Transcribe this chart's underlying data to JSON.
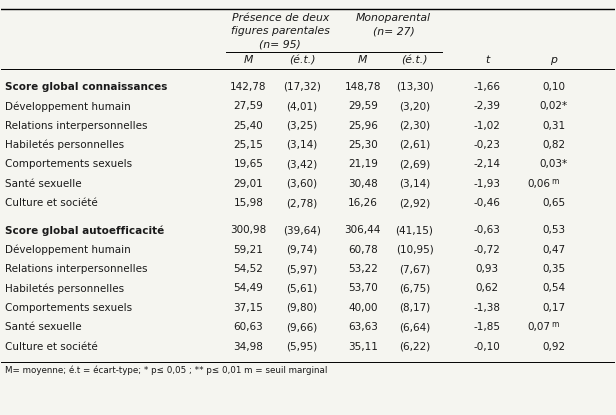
{
  "rows": [
    {
      "label": "Score global connaissances",
      "bold": true,
      "m1": "142,78",
      "et1": "(17,32)",
      "m2": "148,78",
      "et2": "(13,30)",
      "t": "-1,66",
      "p": "0,10",
      "p_suffix": "",
      "space_before": true
    },
    {
      "label": "Développement humain",
      "bold": false,
      "m1": "27,59",
      "et1": "(4,01)",
      "m2": "29,59",
      "et2": "(3,20)",
      "t": "-2,39",
      "p": "0,02*",
      "p_suffix": "",
      "space_before": false
    },
    {
      "label": "Relations interpersonnelles",
      "bold": false,
      "m1": "25,40",
      "et1": "(3,25)",
      "m2": "25,96",
      "et2": "(2,30)",
      "t": "-1,02",
      "p": "0,31",
      "p_suffix": "",
      "space_before": false
    },
    {
      "label": "Habiletés personnelles",
      "bold": false,
      "m1": "25,15",
      "et1": "(3,14)",
      "m2": "25,30",
      "et2": "(2,61)",
      "t": "-0,23",
      "p": "0,82",
      "p_suffix": "",
      "space_before": false
    },
    {
      "label": "Comportements sexuels",
      "bold": false,
      "m1": "19,65",
      "et1": "(3,42)",
      "m2": "21,19",
      "et2": "(2,69)",
      "t": "-2,14",
      "p": "0,03*",
      "p_suffix": "",
      "space_before": false
    },
    {
      "label": "Santé sexuelle",
      "bold": false,
      "m1": "29,01",
      "et1": "(3,60)",
      "m2": "30,48",
      "et2": "(3,14)",
      "t": "-1,93",
      "p": "0,06",
      "p_suffix": "m",
      "space_before": false
    },
    {
      "label": "Culture et société",
      "bold": false,
      "m1": "15,98",
      "et1": "(2,78)",
      "m2": "16,26",
      "et2": "(2,92)",
      "t": "-0,46",
      "p": "0,65",
      "p_suffix": "",
      "space_before": false
    },
    {
      "label": "Score global autoefficacité",
      "bold": true,
      "m1": "300,98",
      "et1": "(39,64)",
      "m2": "306,44",
      "et2": "(41,15)",
      "t": "-0,63",
      "p": "0,53",
      "p_suffix": "",
      "space_before": true
    },
    {
      "label": "Développement humain",
      "bold": false,
      "m1": "59,21",
      "et1": "(9,74)",
      "m2": "60,78",
      "et2": "(10,95)",
      "t": "-0,72",
      "p": "0,47",
      "p_suffix": "",
      "space_before": false
    },
    {
      "label": "Relations interpersonnelles",
      "bold": false,
      "m1": "54,52",
      "et1": "(5,97)",
      "m2": "53,22",
      "et2": "(7,67)",
      "t": "0,93",
      "p": "0,35",
      "p_suffix": "",
      "space_before": false
    },
    {
      "label": "Habiletés personnelles",
      "bold": false,
      "m1": "54,49",
      "et1": "(5,61)",
      "m2": "53,70",
      "et2": "(6,75)",
      "t": "0,62",
      "p": "0,54",
      "p_suffix": "",
      "space_before": false
    },
    {
      "label": "Comportements sexuels",
      "bold": false,
      "m1": "37,15",
      "et1": "(9,80)",
      "m2": "40,00",
      "et2": "(8,17)",
      "t": "-1,38",
      "p": "0,17",
      "p_suffix": "",
      "space_before": false
    },
    {
      "label": "Santé sexuelle",
      "bold": false,
      "m1": "60,63",
      "et1": "(9,66)",
      "m2": "63,63",
      "et2": "(6,64)",
      "t": "-1,85",
      "p": "0,07",
      "p_suffix": "m",
      "space_before": false
    },
    {
      "label": "Culture et société",
      "bold": false,
      "m1": "34,98",
      "et1": "(5,95)",
      "m2": "35,11",
      "et2": "(6,22)",
      "t": "-0,10",
      "p": "0,92",
      "p_suffix": "",
      "space_before": false
    }
  ],
  "grp1_line1": "Présence de deux",
  "grp1_line2": "figures parentales",
  "grp1_line3": "(n= 95)",
  "grp2_line1": "Monoparental",
  "grp2_line2": "(n= 27)",
  "col_m": "M",
  "col_et": "(é.t.)",
  "col_t": "t",
  "col_p": "p",
  "footnote": "M= moyenne; é.t = écart-type; * p≤ 0,05 ; ** p≤ 0,01",
  "footnote2": " m = seuil marginal",
  "bg_color": "#f5f5f0",
  "text_color": "#1a1a1a",
  "font_size": 7.5,
  "header_font_size": 7.8
}
